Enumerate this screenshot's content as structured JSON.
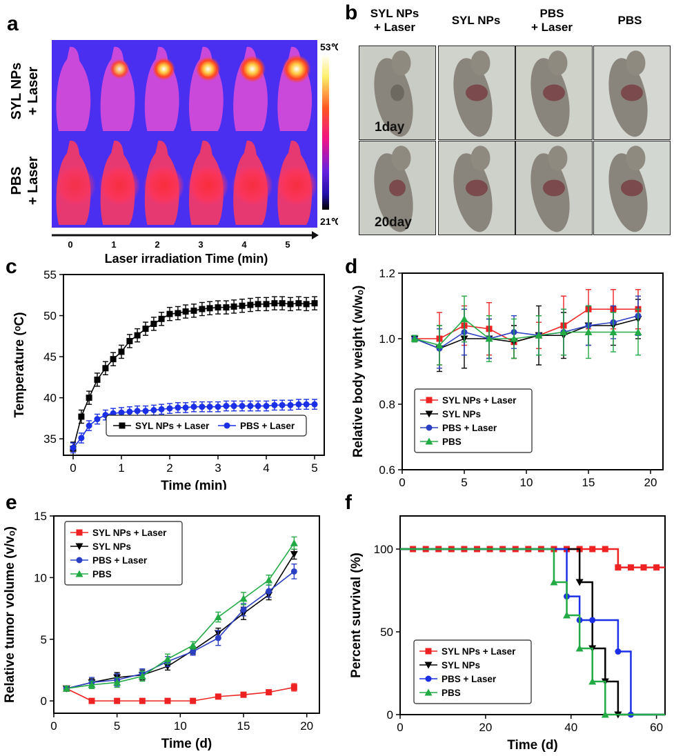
{
  "panels": {
    "a": {
      "letter": "a",
      "row_labels": [
        [
          "SYL NPs",
          "+ Laser"
        ],
        [
          "PBS",
          "+ Laser"
        ]
      ],
      "colorbar_max": "53℃",
      "colorbar_min": "21℃",
      "time_ticks": [
        "0",
        "1",
        "2",
        "3",
        "4",
        "5"
      ],
      "axis_label": "Laser irradiation Time (min)",
      "hotspot_levels": [
        [
          0.0,
          0.45,
          0.6,
          0.7,
          0.8,
          0.9
        ],
        [
          0.15,
          0.3,
          0.35,
          0.35,
          0.3,
          0.3
        ]
      ]
    },
    "b": {
      "letter": "b",
      "column_headers": [
        [
          "SYL NPs",
          "+ Laser"
        ],
        [
          "SYL NPs"
        ],
        [
          "PBS",
          "+ Laser"
        ],
        [
          "PBS"
        ]
      ],
      "row_labels": [
        "1day",
        "20day"
      ]
    },
    "c": {
      "letter": "c"
    },
    "d": {
      "letter": "d"
    },
    "e": {
      "letter": "e"
    },
    "f": {
      "letter": "f"
    }
  },
  "colors": {
    "black": "#000000",
    "blue": "#1a2fe6",
    "red": "#ee2222",
    "green": "#22aa44",
    "thermal_bg": "#4a2ff0"
  },
  "chart_data": [
    {
      "id": "c",
      "type": "line",
      "xlabel": "Time (min)",
      "ylabel": "Temperature (ᵒC)",
      "xlim": [
        -0.2,
        5.2
      ],
      "ylim": [
        33,
        55
      ],
      "xticks": [
        0,
        1,
        2,
        3,
        4,
        5
      ],
      "yticks": [
        35,
        40,
        45,
        50,
        55
      ],
      "legend_position": "bottom-right",
      "legend_layout": "horizontal",
      "series": [
        {
          "name": "SYL NPs + Laser",
          "color": "#000000",
          "marker": "square",
          "x": [
            0,
            0.17,
            0.33,
            0.5,
            0.67,
            0.83,
            1.0,
            1.17,
            1.33,
            1.5,
            1.67,
            1.83,
            2.0,
            2.17,
            2.33,
            2.5,
            2.67,
            2.83,
            3.0,
            3.17,
            3.33,
            3.5,
            3.67,
            3.83,
            4.0,
            4.17,
            4.33,
            4.5,
            4.67,
            4.83,
            5.0
          ],
          "y": [
            33.8,
            37.7,
            40.0,
            42.2,
            43.6,
            44.7,
            45.6,
            46.9,
            47.6,
            48.4,
            49.0,
            49.6,
            50.2,
            50.3,
            50.5,
            50.6,
            50.8,
            50.9,
            51.0,
            51.0,
            51.1,
            51.2,
            51.3,
            51.4,
            51.4,
            51.5,
            51.5,
            51.4,
            51.5,
            51.4,
            51.5
          ],
          "err": 0.8
        },
        {
          "name": "PBS + Laser",
          "color": "#1a2fe6",
          "marker": "circle",
          "x": [
            0,
            0.17,
            0.33,
            0.5,
            0.67,
            0.83,
            1.0,
            1.17,
            1.33,
            1.5,
            1.67,
            1.83,
            2.0,
            2.17,
            2.33,
            2.5,
            2.67,
            2.83,
            3.0,
            3.17,
            3.33,
            3.5,
            3.67,
            3.83,
            4.0,
            4.17,
            4.33,
            4.5,
            4.67,
            4.83,
            5.0
          ],
          "y": [
            33.9,
            35.1,
            36.6,
            37.4,
            37.9,
            38.1,
            38.2,
            38.3,
            38.4,
            38.4,
            38.5,
            38.6,
            38.7,
            38.8,
            38.8,
            38.9,
            38.9,
            38.9,
            38.9,
            39.0,
            39.0,
            39.0,
            39.0,
            39.0,
            39.0,
            39.1,
            39.1,
            39.1,
            39.2,
            39.2,
            39.2
          ],
          "err": 0.6
        }
      ]
    },
    {
      "id": "d",
      "type": "line",
      "xlabel": "Time (d)",
      "ylabel": "Relative body weight (w/wₒ)",
      "xlim": [
        0,
        21
      ],
      "ylim": [
        0.6,
        1.2
      ],
      "xticks": [
        0,
        5,
        10,
        15,
        20
      ],
      "yticks": [
        0.6,
        0.8,
        1.0,
        1.2
      ],
      "legend_position": "bottom-left",
      "series": [
        {
          "name": "SYL NPs + Laser",
          "color": "#ee2222",
          "marker": "square",
          "x": [
            1,
            3,
            5,
            7,
            9,
            11,
            13,
            15,
            17,
            19
          ],
          "y": [
            1.0,
            1.0,
            1.04,
            1.03,
            0.99,
            1.01,
            1.04,
            1.09,
            1.09,
            1.09
          ],
          "err": [
            0.01,
            0.08,
            0.06,
            0.08,
            0.05,
            0.04,
            0.09,
            0.06,
            0.06,
            0.06
          ]
        },
        {
          "name": "SYL NPs",
          "color": "#000000",
          "marker": "triangle-down",
          "x": [
            1,
            3,
            5,
            7,
            9,
            11,
            13,
            15,
            17,
            19
          ],
          "y": [
            1.0,
            0.97,
            1.0,
            1.0,
            0.99,
            1.01,
            1.01,
            1.04,
            1.04,
            1.06
          ],
          "err": [
            0.01,
            0.07,
            0.09,
            0.06,
            0.05,
            0.09,
            0.07,
            0.06,
            0.06,
            0.06
          ]
        },
        {
          "name": "PBS + Laser",
          "color": "#2b3fc4",
          "marker": "circle",
          "x": [
            1,
            3,
            5,
            7,
            9,
            11,
            13,
            15,
            17,
            19
          ],
          "y": [
            1.0,
            0.97,
            1.02,
            1.0,
            1.02,
            1.01,
            1.02,
            1.04,
            1.05,
            1.07
          ],
          "err": [
            0.01,
            0.06,
            0.07,
            0.06,
            0.05,
            0.06,
            0.07,
            0.06,
            0.05,
            0.06
          ]
        },
        {
          "name": "PBS",
          "color": "#22aa44",
          "marker": "triangle",
          "x": [
            1,
            3,
            5,
            7,
            9,
            11,
            13,
            15,
            17,
            19
          ],
          "y": [
            1.0,
            0.98,
            1.06,
            1.0,
            1.0,
            1.01,
            1.02,
            1.02,
            1.02,
            1.02
          ],
          "err": [
            0.01,
            0.06,
            0.07,
            0.07,
            0.06,
            0.06,
            0.07,
            0.08,
            0.06,
            0.07
          ]
        }
      ]
    },
    {
      "id": "e",
      "type": "line",
      "xlabel": "Time (d)",
      "ylabel": "Relative tumor  volume (v/vₒ)",
      "xlim": [
        0,
        21
      ],
      "ylim": [
        -1,
        15
      ],
      "xticks": [
        0,
        5,
        10,
        15,
        20
      ],
      "yticks": [
        0,
        5,
        10,
        15
      ],
      "legend_position": "top-left",
      "series": [
        {
          "name": "SYL NPs + Laser",
          "color": "#ee2222",
          "marker": "square",
          "x": [
            1,
            3,
            5,
            7,
            9,
            11,
            13,
            15,
            17,
            19
          ],
          "y": [
            1.0,
            0.0,
            0.0,
            0.0,
            0.0,
            0.0,
            0.35,
            0.5,
            0.7,
            1.1
          ],
          "err": [
            0.1,
            0.05,
            0.05,
            0.05,
            0.05,
            0.05,
            0.15,
            0.2,
            0.2,
            0.3
          ]
        },
        {
          "name": "SYL NPs",
          "color": "#000000",
          "marker": "triangle-down",
          "x": [
            1,
            3,
            5,
            7,
            9,
            11,
            13,
            15,
            17,
            19
          ],
          "y": [
            1.0,
            1.5,
            1.9,
            2.1,
            2.8,
            4.1,
            5.5,
            7.1,
            8.6,
            11.9
          ],
          "err": [
            0.2,
            0.3,
            0.4,
            0.4,
            0.3,
            0.3,
            0.4,
            0.5,
            0.4,
            0.4
          ]
        },
        {
          "name": "PBS + Laser",
          "color": "#2b3fc4",
          "marker": "circle",
          "x": [
            1,
            3,
            5,
            7,
            9,
            11,
            13,
            15,
            17,
            19
          ],
          "y": [
            1.0,
            1.5,
            1.7,
            2.2,
            3.2,
            4.0,
            5.1,
            7.4,
            8.9,
            10.5
          ],
          "err": [
            0.2,
            0.4,
            0.5,
            0.4,
            0.4,
            0.3,
            0.6,
            0.5,
            0.5,
            0.6
          ]
        },
        {
          "name": "PBS",
          "color": "#22aa44",
          "marker": "triangle",
          "x": [
            1,
            3,
            5,
            7,
            9,
            11,
            13,
            15,
            17,
            19
          ],
          "y": [
            1.0,
            1.3,
            1.5,
            2.0,
            3.4,
            4.5,
            6.8,
            8.3,
            9.8,
            12.8
          ],
          "err": [
            0.2,
            0.3,
            0.4,
            0.4,
            0.4,
            0.3,
            0.4,
            0.5,
            0.4,
            0.5
          ]
        }
      ]
    },
    {
      "id": "f",
      "type": "line",
      "step": true,
      "xlabel": "Time (d)",
      "ylabel": "Percent survival (%)",
      "xlim": [
        0,
        62
      ],
      "ylim": [
        0,
        120
      ],
      "xticks": [
        0,
        20,
        40,
        60
      ],
      "yticks": [
        0,
        50,
        100
      ],
      "legend_position": "bottom-left",
      "series": [
        {
          "name": "SYL NPs + Laser",
          "color": "#ee2222",
          "marker": "square",
          "x": [
            0,
            51,
            62
          ],
          "y": [
            100,
            88.9,
            88.9
          ],
          "markers_x": [
            3,
            6,
            9,
            12,
            15,
            18,
            21,
            24,
            27,
            30,
            33,
            36,
            39,
            42,
            45,
            48,
            51,
            54,
            57,
            60
          ],
          "markers_y": [
            100,
            100,
            100,
            100,
            100,
            100,
            100,
            100,
            100,
            100,
            100,
            100,
            100,
            100,
            100,
            100,
            88.9,
            88.9,
            88.9,
            88.9
          ]
        },
        {
          "name": "SYL NPs",
          "color": "#000000",
          "marker": "triangle-down",
          "x": [
            0,
            42,
            45,
            48,
            51,
            62
          ],
          "y": [
            100,
            80,
            40,
            20,
            0,
            0
          ],
          "markers_x": [
            42,
            45,
            48,
            51
          ],
          "markers_y": [
            80,
            40,
            20,
            0
          ]
        },
        {
          "name": "PBS + Laser",
          "color": "#1a2fe6",
          "marker": "circle",
          "x": [
            0,
            39,
            42,
            45,
            51,
            54,
            62
          ],
          "y": [
            100,
            71.4,
            57.1,
            57.1,
            38.1,
            0,
            0
          ],
          "markers_x": [
            39,
            42,
            45,
            51,
            54
          ],
          "markers_y": [
            71.4,
            57.1,
            57.1,
            38.1,
            0
          ]
        },
        {
          "name": "PBS",
          "color": "#22aa44",
          "marker": "triangle",
          "x": [
            0,
            36,
            39,
            42,
            45,
            48,
            62
          ],
          "y": [
            100,
            80,
            60,
            40,
            20,
            0,
            0
          ],
          "markers_x": [
            36,
            39,
            42,
            45,
            48
          ],
          "markers_y": [
            80,
            60,
            40,
            20,
            0
          ]
        }
      ]
    }
  ]
}
